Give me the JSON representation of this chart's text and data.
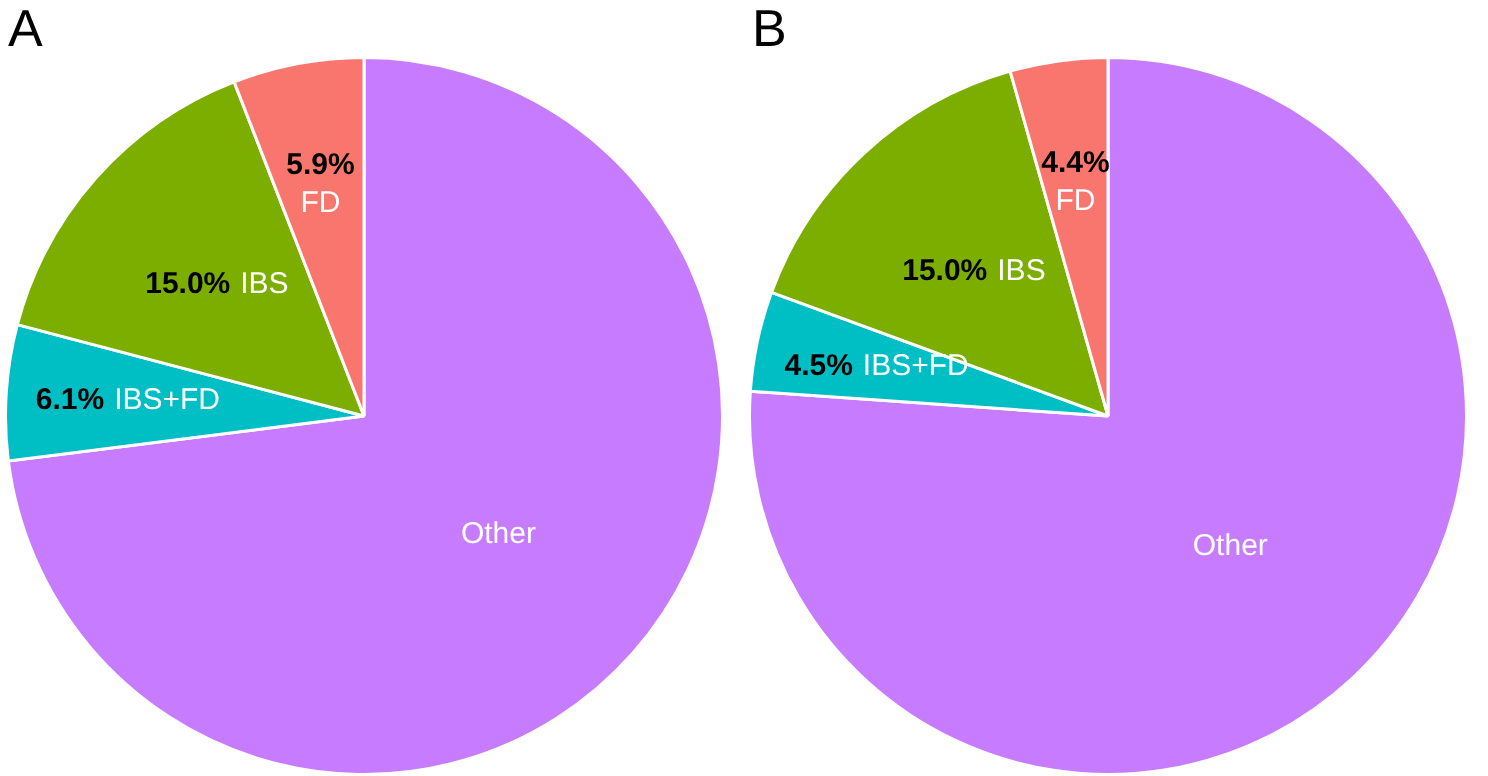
{
  "chart_data": [
    {
      "type": "pie",
      "title": "A",
      "categories": [
        "Other",
        "IBS+FD",
        "IBS",
        "FD"
      ],
      "values": [
        73.0,
        6.1,
        15.0,
        5.9
      ],
      "colors": [
        "#c77cff",
        "#00bfc4",
        "#7cae00",
        "#f8766d"
      ],
      "value_labels": [
        null,
        "6.1%",
        "15.0%",
        "5.9%"
      ],
      "legend": false
    },
    {
      "type": "pie",
      "title": "B",
      "categories": [
        "Other",
        "IBS+FD",
        "IBS",
        "FD"
      ],
      "values": [
        76.1,
        4.5,
        15.0,
        4.4
      ],
      "colors": [
        "#c77cff",
        "#00bfc4",
        "#7cae00",
        "#f8766d"
      ],
      "value_labels": [
        null,
        "4.5%",
        "15.0%",
        "4.4%"
      ],
      "legend": false
    }
  ]
}
